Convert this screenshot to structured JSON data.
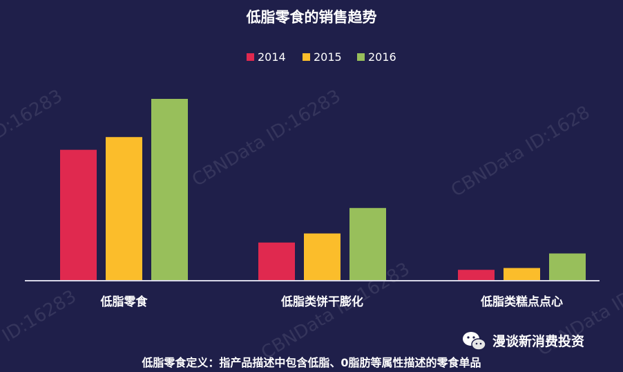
{
  "chart_data": {
    "type": "bar",
    "title": "低脂零食的销售趋势",
    "categories": [
      "低脂零食",
      "低脂类饼干膨化",
      "低脂类糕点点心"
    ],
    "series": [
      {
        "name": "2014",
        "color": "#e0294f",
        "values": [
          72,
          21,
          6
        ]
      },
      {
        "name": "2015",
        "color": "#fbbd2b",
        "values": [
          79,
          26,
          7
        ]
      },
      {
        "name": "2016",
        "color": "#98bf5b",
        "values": [
          100,
          40,
          15
        ]
      }
    ],
    "ylim": [
      0,
      100
    ],
    "grid": false,
    "legend_position": "top-center",
    "footnote": "低脂零食定义：指产品描述中包含低脂、0脂肪等属性描述的零食单品"
  },
  "watermark": {
    "texts": [
      "ID:16283",
      "CBNData ID:16283",
      "CBNData ID:1628",
      "CBNData ID:1628",
      "ID:16283",
      "CBNData ID:16283"
    ]
  },
  "brand": {
    "label": "漫谈新消费投资",
    "icon": "wechat-icon"
  }
}
